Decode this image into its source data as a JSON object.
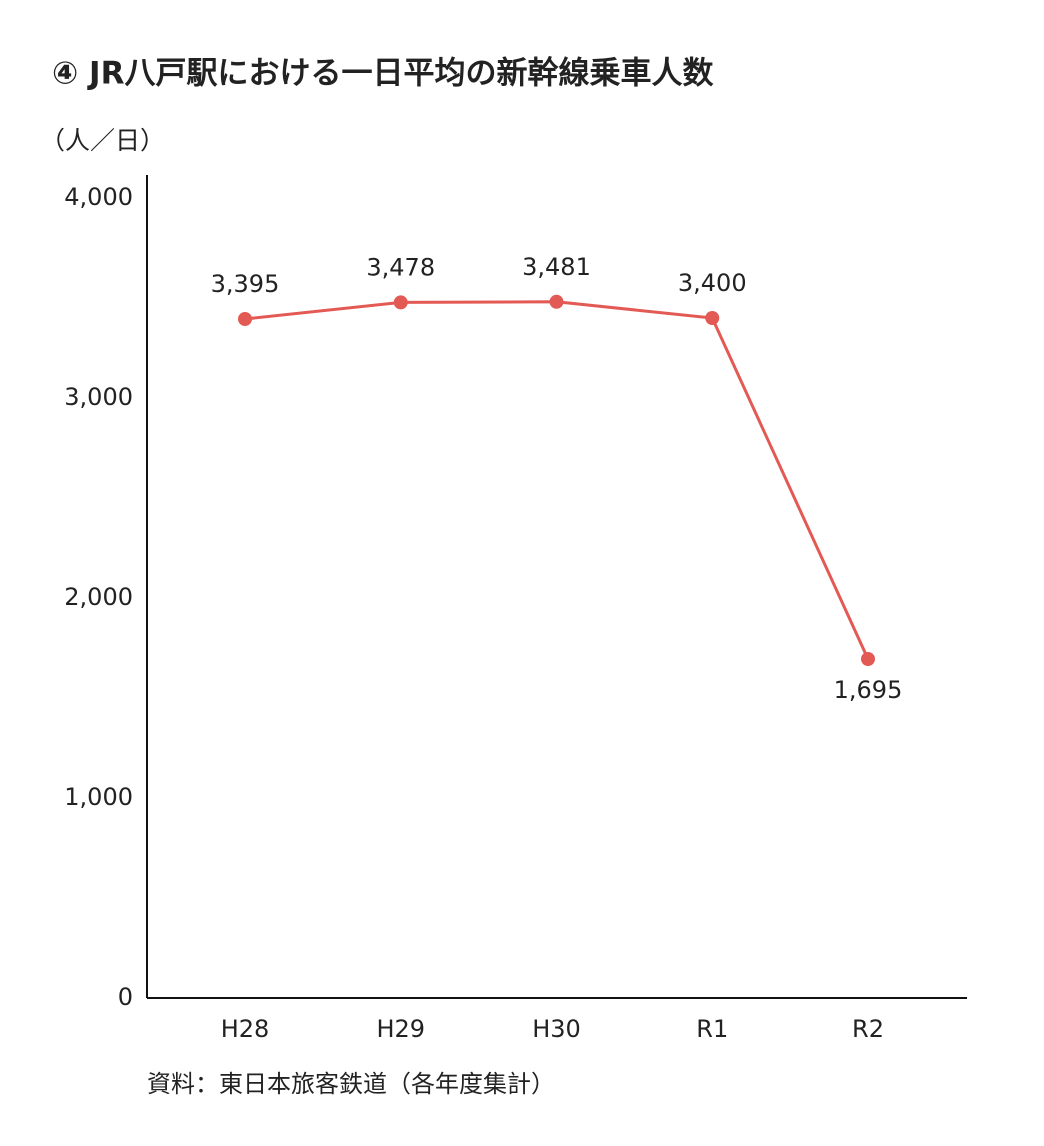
{
  "chart_data": {
    "type": "line",
    "title": "④ JR八戸駅における一日平均の新幹線乗車人数",
    "y_label": "（人／日）",
    "source": "資料：東日本旅客鉄道（各年度集計）",
    "categories": [
      "H28",
      "H29",
      "H30",
      "R1",
      "R2"
    ],
    "series": [
      {
        "color": "#e35a55",
        "values": [
          3395,
          3478,
          3481,
          3400,
          1695
        ],
        "value_labels": [
          "3,395",
          "3,478",
          "3,481",
          "3,400",
          "1,695"
        ]
      }
    ],
    "ylim": [
      0,
      4000
    ],
    "yticks": [
      0,
      {
        "value": 1000,
        "label": "1,000"
      },
      {
        "value": 2000,
        "label": "2,000"
      },
      {
        "value": 3000,
        "label": "3,000"
      },
      {
        "value": 4000,
        "label": "4,000"
      }
    ],
    "grid": false
  }
}
